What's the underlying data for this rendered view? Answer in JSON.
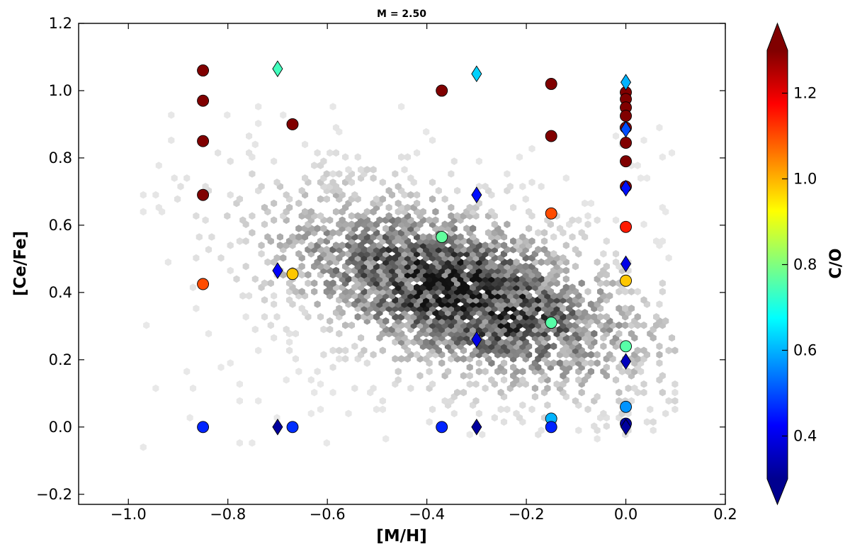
{
  "chart_data": {
    "type": "scatter",
    "title": "M = 2.50",
    "xlabel": "[M/H]",
    "ylabel": "[Ce/Fe]",
    "xlim": [
      -1.1,
      0.2
    ],
    "ylim": [
      -0.23,
      1.2
    ],
    "x_ticks": [
      -1.0,
      -0.8,
      -0.6,
      -0.4,
      -0.2,
      0.0,
      0.2
    ],
    "x_tick_labels": [
      "−1.0",
      "−0.8",
      "−0.6",
      "−0.4",
      "−0.2",
      "0.0",
      "0.2"
    ],
    "y_ticks": [
      -0.2,
      0.0,
      0.2,
      0.4,
      0.6,
      0.8,
      1.0,
      1.2
    ],
    "y_tick_labels": [
      "−0.2",
      "0.0",
      "0.2",
      "0.4",
      "0.6",
      "0.8",
      "1.0",
      "1.2"
    ],
    "grid": false,
    "colorbar": {
      "label": "C/O",
      "range": [
        0.3,
        1.3
      ],
      "colormap": "jet",
      "extend": "both",
      "ticks": [
        0.4,
        0.6,
        0.8,
        1.0,
        1.2
      ],
      "tick_labels": [
        "0.4",
        "0.6",
        "0.8",
        "1.0",
        "1.2"
      ]
    },
    "background_density": {
      "type": "hexbin",
      "color": "greyscale",
      "center": [
        -0.33,
        0.4
      ],
      "extent_x": [
        -0.97,
        0.1
      ],
      "extent_y": [
        -0.06,
        0.96
      ]
    },
    "series": [
      {
        "marker": "circle",
        "points": [
          {
            "x": -0.85,
            "y": 1.06,
            "c": 1.3
          },
          {
            "x": -0.85,
            "y": 0.97,
            "c": 1.3
          },
          {
            "x": -0.85,
            "y": 0.85,
            "c": 1.3
          },
          {
            "x": -0.85,
            "y": 0.69,
            "c": 1.3
          },
          {
            "x": -0.85,
            "y": 0.425,
            "c": 1.1
          },
          {
            "x": -0.85,
            "y": 0.0,
            "c": 0.46
          },
          {
            "x": -0.67,
            "y": 0.9,
            "c": 1.3
          },
          {
            "x": -0.67,
            "y": 0.455,
            "c": 0.98
          },
          {
            "x": -0.67,
            "y": 0.0,
            "c": 0.47
          },
          {
            "x": -0.37,
            "y": 1.0,
            "c": 1.3
          },
          {
            "x": -0.37,
            "y": 0.565,
            "c": 0.77
          },
          {
            "x": -0.37,
            "y": 0.0,
            "c": 0.46
          },
          {
            "x": -0.15,
            "y": 1.02,
            "c": 1.3
          },
          {
            "x": -0.15,
            "y": 0.865,
            "c": 1.3
          },
          {
            "x": -0.15,
            "y": 0.635,
            "c": 1.1
          },
          {
            "x": -0.15,
            "y": 0.31,
            "c": 0.76
          },
          {
            "x": -0.15,
            "y": 0.025,
            "c": 0.6
          },
          {
            "x": -0.15,
            "y": 0.0,
            "c": 0.46
          },
          {
            "x": 0.0,
            "y": 0.995,
            "c": 1.3
          },
          {
            "x": 0.0,
            "y": 0.975,
            "c": 1.3
          },
          {
            "x": 0.0,
            "y": 0.95,
            "c": 1.3
          },
          {
            "x": 0.0,
            "y": 0.925,
            "c": 1.3
          },
          {
            "x": 0.0,
            "y": 0.89,
            "c": 1.3
          },
          {
            "x": 0.0,
            "y": 0.845,
            "c": 1.3
          },
          {
            "x": 0.0,
            "y": 0.79,
            "c": 1.3
          },
          {
            "x": 0.0,
            "y": 0.715,
            "c": 1.3
          },
          {
            "x": 0.0,
            "y": 0.595,
            "c": 1.15
          },
          {
            "x": 0.0,
            "y": 0.435,
            "c": 0.98
          },
          {
            "x": 0.0,
            "y": 0.24,
            "c": 0.76
          },
          {
            "x": 0.0,
            "y": 0.06,
            "c": 0.57
          },
          {
            "x": 0.0,
            "y": 0.01,
            "c": 0.33
          }
        ]
      },
      {
        "marker": "diamond",
        "points": [
          {
            "x": -0.7,
            "y": 1.065,
            "c": 0.74
          },
          {
            "x": -0.7,
            "y": 0.465,
            "c": 0.42
          },
          {
            "x": -0.7,
            "y": 0.0,
            "c": 0.33
          },
          {
            "x": -0.3,
            "y": 1.05,
            "c": 0.63
          },
          {
            "x": -0.3,
            "y": 0.69,
            "c": 0.44
          },
          {
            "x": -0.3,
            "y": 0.26,
            "c": 0.4
          },
          {
            "x": -0.3,
            "y": 0.0,
            "c": 0.33
          },
          {
            "x": 0.0,
            "y": 1.025,
            "c": 0.6
          },
          {
            "x": 0.0,
            "y": 0.885,
            "c": 0.5
          },
          {
            "x": 0.0,
            "y": 0.71,
            "c": 0.44
          },
          {
            "x": 0.0,
            "y": 0.485,
            "c": 0.4
          },
          {
            "x": 0.0,
            "y": 0.195,
            "c": 0.36
          },
          {
            "x": 0.0,
            "y": 0.0,
            "c": 0.33
          }
        ]
      }
    ]
  }
}
